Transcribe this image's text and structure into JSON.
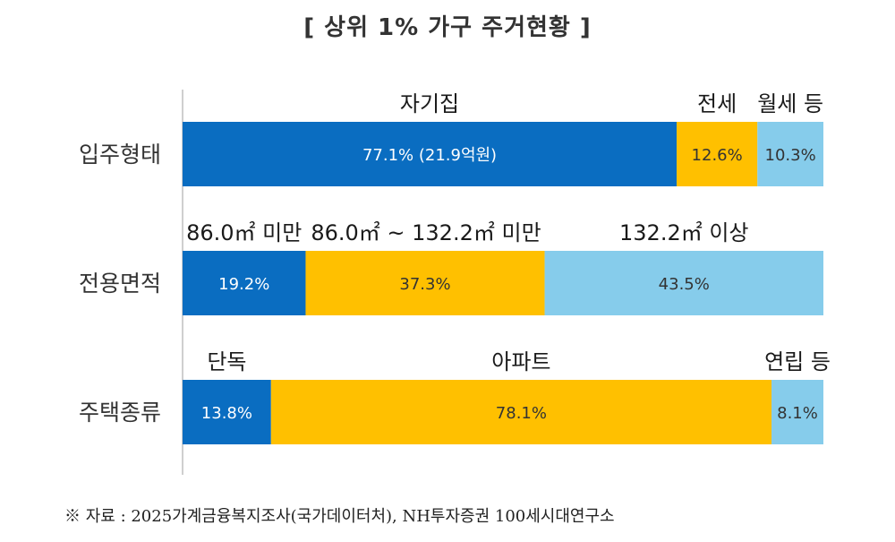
{
  "title": "[ 상위 1% 가구 주거현황 ]",
  "source": "※ 자료 : 2025가계금융복지조사(국가데이터처), NH투자증권 100세시대연구소",
  "colors": {
    "dark_blue": "#0A6DC1",
    "gold": "#FFC000",
    "light_blue": "#86CCEB",
    "axis": "#BFBFBF"
  },
  "chart_data": {
    "type": "bar",
    "orientation": "horizontal",
    "stacked": true,
    "percent": true,
    "title": "[ 상위 1% 가구 주거현황 ]",
    "categories": [
      "입주형태",
      "전용면적",
      "주택종류"
    ],
    "xlim": [
      0,
      100
    ],
    "rows": [
      {
        "category": "입주형태",
        "segments": [
          {
            "name": "자기집",
            "value": 77.1,
            "label": "77.1% (21.9억원)",
            "color": "#0A6DC1",
            "text_color": "#ffffff"
          },
          {
            "name": "전세",
            "value": 12.6,
            "label": "12.6%",
            "color": "#FFC000",
            "text_color": "#333333"
          },
          {
            "name": "월세 등",
            "value": 10.3,
            "label": "10.3%",
            "color": "#86CCEB",
            "text_color": "#333333"
          }
        ]
      },
      {
        "category": "전용면적",
        "segments": [
          {
            "name": "86.0㎡ 미만",
            "value": 19.2,
            "label": "19.2%",
            "color": "#0A6DC1",
            "text_color": "#ffffff"
          },
          {
            "name": "86.0㎡ ~ 132.2㎡ 미만",
            "value": 37.3,
            "label": "37.3%",
            "color": "#FFC000",
            "text_color": "#333333"
          },
          {
            "name": "132.2㎡ 이상",
            "value": 43.5,
            "label": "43.5%",
            "color": "#86CCEB",
            "text_color": "#333333"
          }
        ]
      },
      {
        "category": "주택종류",
        "segments": [
          {
            "name": "단독",
            "value": 13.8,
            "label": "13.8%",
            "color": "#0A6DC1",
            "text_color": "#ffffff"
          },
          {
            "name": "아파트",
            "value": 78.1,
            "label": "78.1%",
            "color": "#FFC000",
            "text_color": "#333333"
          },
          {
            "name": "연립 등",
            "value": 8.1,
            "label": "8.1%",
            "color": "#86CCEB",
            "text_color": "#333333"
          }
        ]
      }
    ]
  }
}
